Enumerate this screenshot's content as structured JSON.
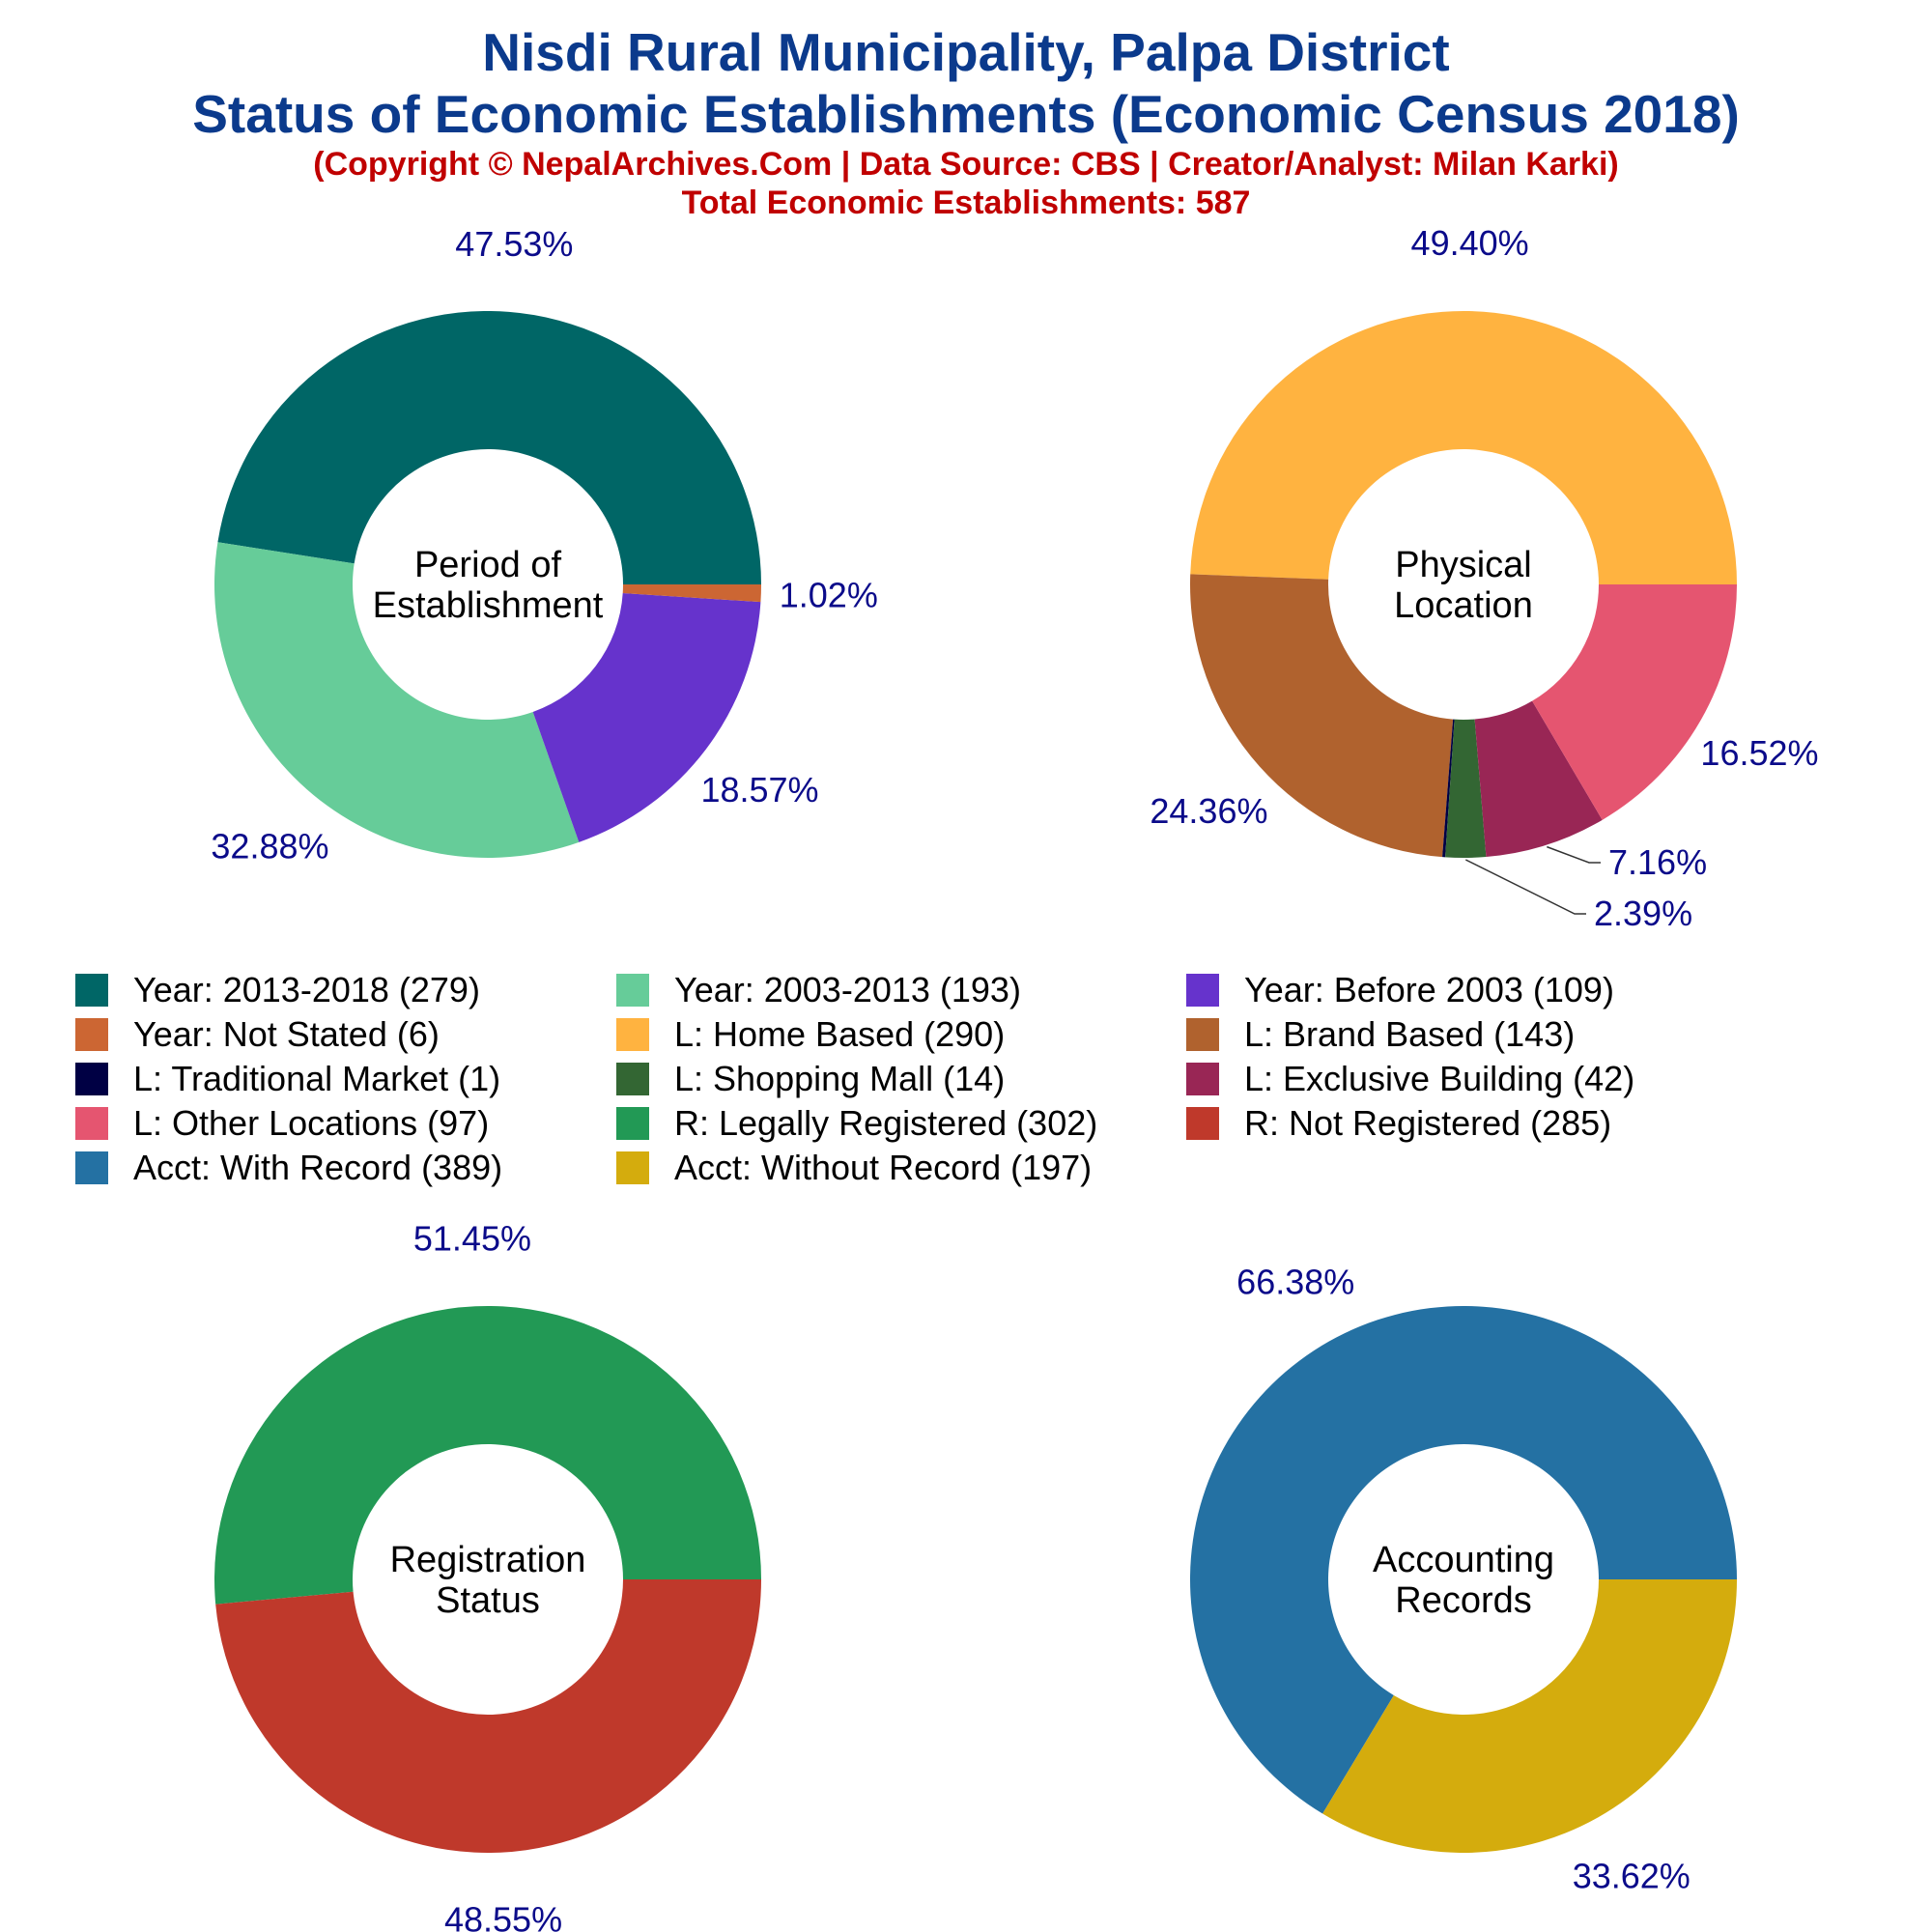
{
  "header": {
    "title_line1": "Nisdi Rural Municipality, Palpa District",
    "title_line2": "Status of Economic Establishments (Economic Census 2018)",
    "copyright": "(Copyright © NepalArchives.Com | Data Source: CBS | Creator/Analyst: Milan Karki)",
    "total": "Total Economic Establishments: 587"
  },
  "legend": [
    {
      "label": "Year: 2013-2018 (279)",
      "color": "#006666"
    },
    {
      "label": "Year: 2003-2013 (193)",
      "color": "#66cc99"
    },
    {
      "label": "Year: Before 2003 (109)",
      "color": "#6633cc"
    },
    {
      "label": "Year: Not Stated (6)",
      "color": "#cc6633"
    },
    {
      "label": "L: Home Based (290)",
      "color": "#ffb340"
    },
    {
      "label": "L: Brand Based (143)",
      "color": "#b0622e"
    },
    {
      "label": "L: Traditional Market (1)",
      "color": "#000044"
    },
    {
      "label": "L: Shopping Mall (14)",
      "color": "#336633"
    },
    {
      "label": "L: Exclusive Building (42)",
      "color": "#992655"
    },
    {
      "label": "L: Other Locations (97)",
      "color": "#e55570"
    },
    {
      "label": "R: Legally Registered (302)",
      "color": "#229955"
    },
    {
      "label": "R: Not Registered (285)",
      "color": "#bf392b"
    },
    {
      "label": "Acct: With Record (389)",
      "color": "#2471a3"
    },
    {
      "label": "Acct: Without Record (197)",
      "color": "#d4ac0d"
    }
  ],
  "chart_data": [
    {
      "type": "pie",
      "center_label": [
        "Period of",
        "Establishment"
      ],
      "slices": [
        {
          "name": "Year: 2013-2018",
          "value": 279,
          "pct_label": "47.53%",
          "color": "#006666"
        },
        {
          "name": "Year: 2003-2013",
          "value": 193,
          "pct_label": "32.88%",
          "color": "#66cc99"
        },
        {
          "name": "Year: Before 2003",
          "value": 109,
          "pct_label": "18.57%",
          "color": "#6633cc"
        },
        {
          "name": "Year: Not Stated",
          "value": 6,
          "pct_label": "1.02%",
          "color": "#cc6633"
        }
      ]
    },
    {
      "type": "pie",
      "center_label": [
        "Physical",
        "Location"
      ],
      "slices": [
        {
          "name": "L: Home Based",
          "value": 290,
          "pct_label": "49.40%",
          "color": "#ffb340"
        },
        {
          "name": "L: Brand Based",
          "value": 143,
          "pct_label": "24.36%",
          "color": "#b0622e"
        },
        {
          "name": "L: Traditional Market",
          "value": 1,
          "pct_label": "",
          "color": "#000044"
        },
        {
          "name": "L: Shopping Mall",
          "value": 14,
          "pct_label": "2.39%",
          "color": "#336633"
        },
        {
          "name": "L: Exclusive Building",
          "value": 42,
          "pct_label": "7.16%",
          "color": "#992655"
        },
        {
          "name": "L: Other Locations",
          "value": 97,
          "pct_label": "16.52%",
          "color": "#e55570"
        }
      ]
    },
    {
      "type": "pie",
      "center_label": [
        "Registration",
        "Status"
      ],
      "slices": [
        {
          "name": "R: Legally Registered",
          "value": 302,
          "pct_label": "51.45%",
          "color": "#229955"
        },
        {
          "name": "R: Not Registered",
          "value": 285,
          "pct_label": "48.55%",
          "color": "#bf392b"
        }
      ]
    },
    {
      "type": "pie",
      "center_label": [
        "Accounting",
        "Records"
      ],
      "slices": [
        {
          "name": "Acct: With Record",
          "value": 389,
          "pct_label": "66.38%",
          "color": "#2471a3"
        },
        {
          "name": "Acct: Without Record",
          "value": 197,
          "pct_label": "33.62%",
          "color": "#d4ac0d"
        }
      ]
    }
  ]
}
